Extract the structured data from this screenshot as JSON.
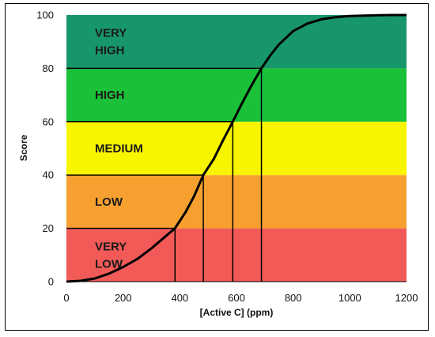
{
  "chart_data": {
    "type": "line",
    "title": "",
    "xlabel": "[Active C] (ppm)",
    "ylabel": "Score",
    "xlim": [
      0,
      1200
    ],
    "ylim": [
      0,
      100
    ],
    "x_ticks": [
      0,
      200,
      400,
      600,
      800,
      1000,
      1200
    ],
    "y_ticks": [
      0,
      20,
      40,
      60,
      80,
      100
    ],
    "bands": [
      {
        "from": 0,
        "to": 20,
        "label": [
          "VERY",
          "LOW"
        ],
        "color": "#f25a58"
      },
      {
        "from": 20,
        "to": 40,
        "label": [
          "LOW"
        ],
        "color": "#f7a030"
      },
      {
        "from": 40,
        "to": 60,
        "label": [
          "MEDIUM"
        ],
        "color": "#f9f400"
      },
      {
        "from": 60,
        "to": 80,
        "label": [
          "HIGH"
        ],
        "color": "#19c038"
      },
      {
        "from": 80,
        "to": 100,
        "label": [
          "VERY",
          "HIGH"
        ],
        "color": "#17966a"
      }
    ],
    "curve": {
      "x": [
        0,
        50,
        100,
        150,
        200,
        250,
        300,
        350,
        383,
        420,
        450,
        483,
        520,
        550,
        587,
        620,
        650,
        688,
        720,
        750,
        800,
        850,
        900,
        950,
        1000,
        1050,
        1100,
        1150,
        1200
      ],
      "y": [
        0,
        0.3,
        1.2,
        3,
        5.5,
        8.5,
        12.5,
        17,
        20,
        26,
        32,
        40,
        46,
        52.5,
        60,
        67,
        73,
        80,
        85,
        89,
        94,
        96.8,
        98.4,
        99.2,
        99.6,
        99.8,
        99.9,
        100,
        100
      ],
      "color": "#000000"
    },
    "thresholds": [
      {
        "x": 383,
        "y": 20
      },
      {
        "x": 483,
        "y": 40
      },
      {
        "x": 587,
        "y": 60
      },
      {
        "x": 688,
        "y": 80
      }
    ]
  }
}
